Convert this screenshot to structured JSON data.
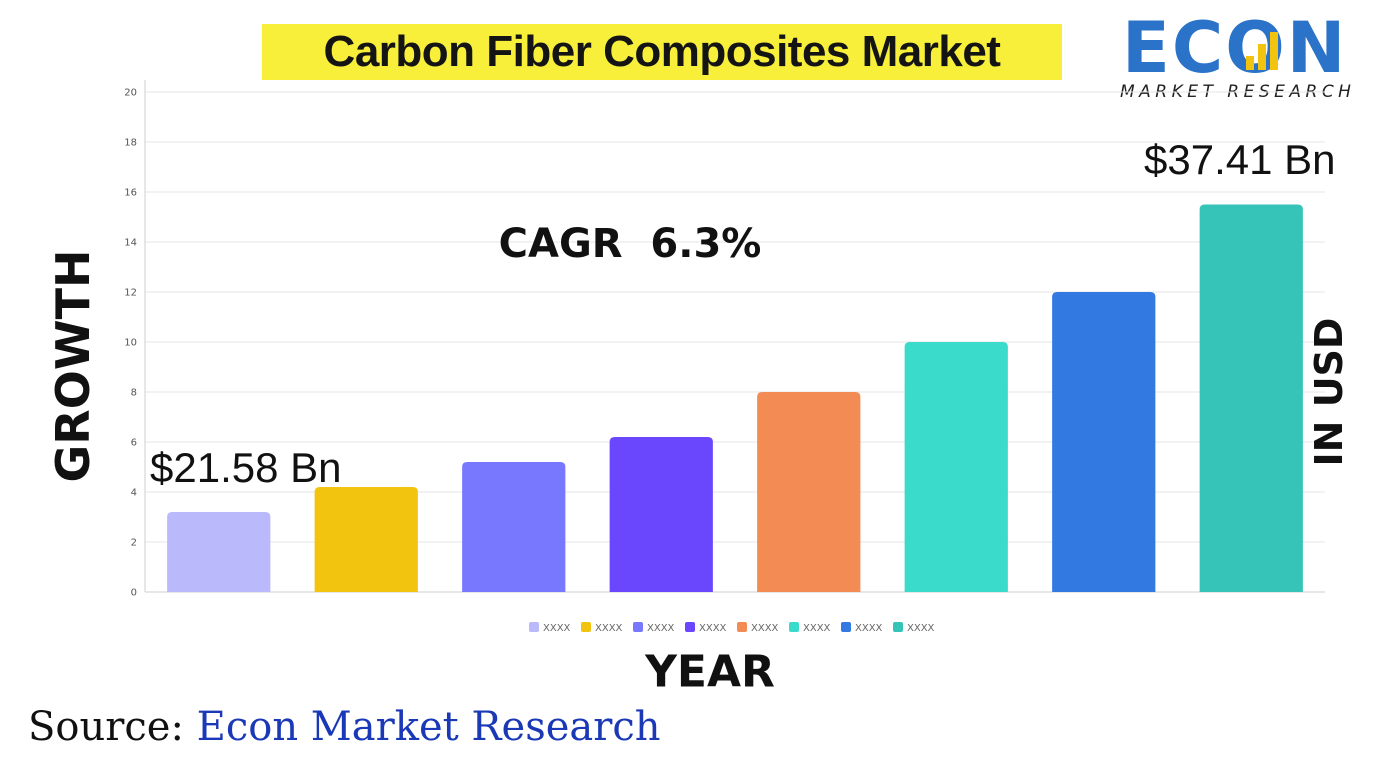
{
  "title": "Carbon Fiber Composites Market",
  "logo": {
    "word": "ECON",
    "subtitle": "MARKET RESEARCH",
    "color": "#2a73c8",
    "accent": "#f2c40f"
  },
  "annotations": {
    "cagr": "CAGR  6.3%",
    "start_value": "$21.58 Bn",
    "end_value": "$37.41 Bn"
  },
  "axis_titles": {
    "y_left": "GROWTH",
    "y_right": "IN USD",
    "x": "YEAR"
  },
  "source": {
    "prefix": "Source:",
    "name": " Econ Market Research"
  },
  "chart_data": {
    "type": "bar",
    "categories": [
      "XXXX",
      "XXXX",
      "XXXX",
      "XXXX",
      "XXXX",
      "XXXX",
      "XXXX",
      "XXXX"
    ],
    "values": [
      3.2,
      4.2,
      5.2,
      6.2,
      8.0,
      10.0,
      12.0,
      15.5
    ],
    "colors": [
      "#b9b9fc",
      "#f2c40f",
      "#7878fe",
      "#6a47fd",
      "#f28b54",
      "#3adbca",
      "#3279e2",
      "#36c4b8"
    ],
    "ylim": [
      0,
      20
    ],
    "yticks": [
      0,
      2,
      4,
      6,
      8,
      10,
      12,
      14,
      16,
      18,
      20
    ],
    "grid": true,
    "legend": "bottom"
  }
}
